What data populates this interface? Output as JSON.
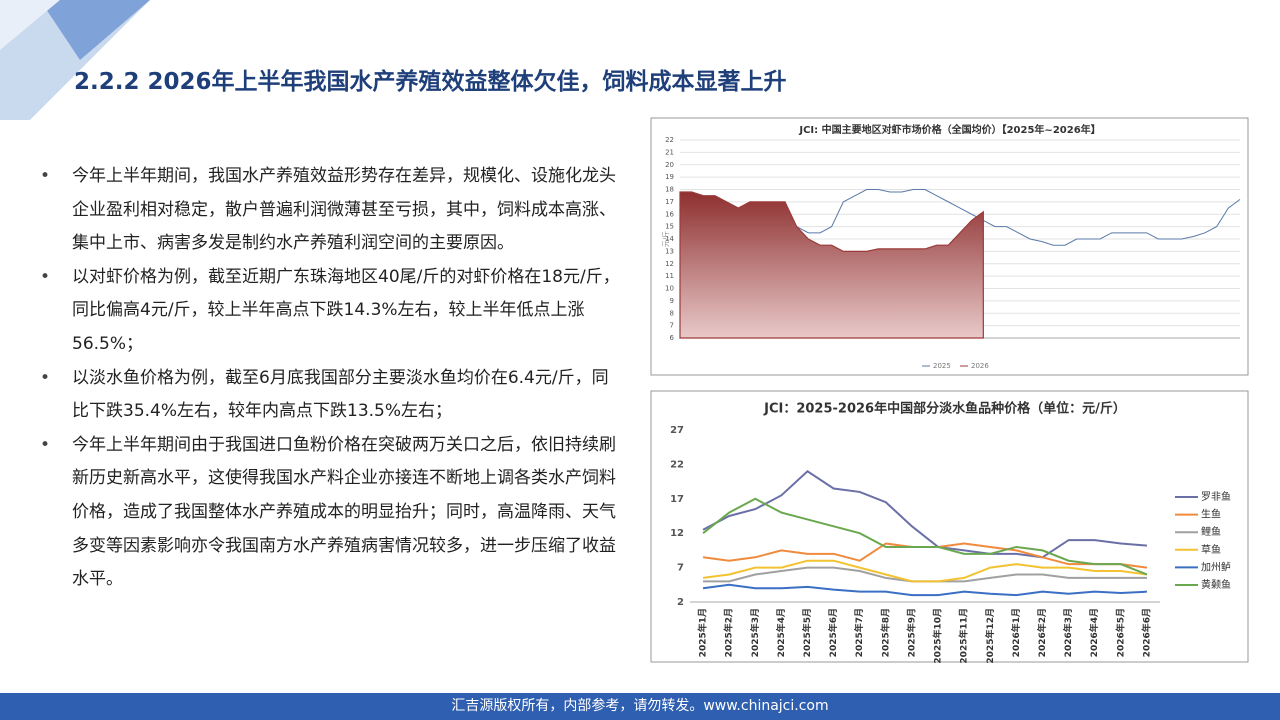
{
  "title": "2.2.2 2026年上半年我国水产养殖效益整体欠佳，饲料成本显著上升",
  "bullets": [
    "今年上半年期间，我国水产养殖效益形势存在差异，规模化、设施化龙头企业盈利相对稳定，散户普遍利润微薄甚至亏损，其中，饲料成本高涨、集中上市、病害多发是制约水产养殖利润空间的主要原因。",
    "以对虾价格为例，截至近期广东珠海地区40尾/斤的对虾价格在18元/斤，同比偏高4元/斤，较上半年高点下跌14.3%左右，较上半年低点上涨56.5%；",
    "以淡水鱼价格为例，截至6月底我国部分主要淡水鱼均价在6.4元/斤，同比下跌35.4%左右，较年内高点下跌13.5%左右；",
    "今年上半年期间由于我国进口鱼粉价格在突破两万关口之后，依旧持续刷新历史新高水平，这使得我国水产料企业亦接连不断地上调各类水产饲料价格，造成了我国整体水产养殖成本的明显抬升；同时，高温降雨、天气多变等因素影响亦令我国南方水产养殖病害情况较多，进一步压缩了收益水平。"
  ],
  "footer": "汇吉源版权所有，内部参考，请勿转发。www.chinajci.com",
  "chart_data": [
    {
      "type": "line",
      "title": "JCI: 中国主要地区对虾市场价格（全国均价）【2025年~2026年】",
      "y_label": "元/斤",
      "ylim": [
        6,
        22
      ],
      "yticks": [
        6,
        7,
        8,
        9,
        10,
        11,
        12,
        13,
        14,
        15,
        16,
        17,
        18,
        19,
        20,
        21,
        22
      ],
      "grid": true,
      "legend": "bottom",
      "series": [
        {
          "name": "2025",
          "color": "#5a7aa8",
          "style": "line",
          "values": [
            14.5,
            14.5,
            14,
            13.5,
            13,
            13,
            13,
            13.5,
            14.5,
            15,
            15,
            14.5,
            14.5,
            15,
            17,
            17.5,
            18,
            18,
            17.8,
            17.8,
            18,
            18,
            17.5,
            17,
            16.5,
            16,
            15.5,
            15,
            15,
            14.5,
            14,
            13.8,
            13.5,
            13.5,
            14,
            14,
            14,
            14.5,
            14.5,
            14.5,
            14.5,
            14,
            14,
            14,
            14.2,
            14.5,
            15,
            16.5,
            17.2
          ]
        },
        {
          "name": "2026",
          "color": "#9b3a3a",
          "style": "area",
          "values": [
            17.8,
            17.8,
            17.5,
            17.5,
            17,
            16.5,
            17,
            17,
            17,
            17,
            15,
            14,
            13.5,
            13.5,
            13,
            13,
            13,
            13.2,
            13.2,
            13.2,
            13.2,
            13.2,
            13.5,
            13.5,
            14.5,
            15.5,
            16.2
          ]
        }
      ]
    },
    {
      "type": "line",
      "title": "JCI：2025-2026年中国部分淡水鱼品种价格（单位：元/斤）",
      "categories": [
        "2025年1月",
        "2025年2月",
        "2025年3月",
        "2025年4月",
        "2025年5月",
        "2025年6月",
        "2025年7月",
        "2025年8月",
        "2025年9月",
        "2025年10月",
        "2025年11月",
        "2025年12月",
        "2026年1月",
        "2026年2月",
        "2026年3月",
        "2026年4月",
        "2026年5月",
        "2026年6月"
      ],
      "ylim": [
        2,
        27
      ],
      "yticks": [
        2,
        7,
        12,
        17,
        22,
        27
      ],
      "legend": "right",
      "series": [
        {
          "name": "罗非鱼",
          "color": "#6b6fa8",
          "values": [
            12.5,
            14.5,
            15.5,
            17.5,
            21,
            18.5,
            18,
            16.5,
            13,
            10,
            9.5,
            9,
            9,
            8.5,
            11,
            11,
            10.5,
            10.2
          ]
        },
        {
          "name": "生鱼",
          "color": "#f08a3c",
          "values": [
            8.5,
            8,
            8.5,
            9.5,
            9,
            9,
            8,
            10.5,
            10,
            10,
            10.5,
            10,
            9.5,
            8.5,
            7.5,
            7.5,
            7.5,
            7
          ]
        },
        {
          "name": "鲤鱼",
          "color": "#a0a0a0",
          "values": [
            5,
            5,
            6,
            6.5,
            7,
            7,
            6.5,
            5.5,
            5,
            5,
            5,
            5.5,
            6,
            6,
            5.5,
            5.5,
            5.5,
            5.5
          ]
        },
        {
          "name": "草鱼",
          "color": "#f2c230",
          "values": [
            5.5,
            6,
            7,
            7,
            8,
            8,
            7,
            6,
            5,
            5,
            5.5,
            7,
            7.5,
            7,
            7,
            6.5,
            6.5,
            6
          ]
        },
        {
          "name": "加州鲈",
          "color": "#3a6fc4",
          "values": [
            4,
            4.5,
            4,
            4,
            4.2,
            3.8,
            3.5,
            3.5,
            3,
            3,
            3.5,
            3.2,
            3,
            3.5,
            3.2,
            3.5,
            3.3,
            3.5
          ]
        },
        {
          "name": "黄颡鱼",
          "color": "#6aa84f",
          "values": [
            12,
            15,
            17,
            15,
            14,
            13,
            12,
            10,
            10,
            10,
            9,
            9,
            10,
            9.5,
            8,
            7.5,
            7.5,
            6
          ]
        }
      ]
    }
  ]
}
